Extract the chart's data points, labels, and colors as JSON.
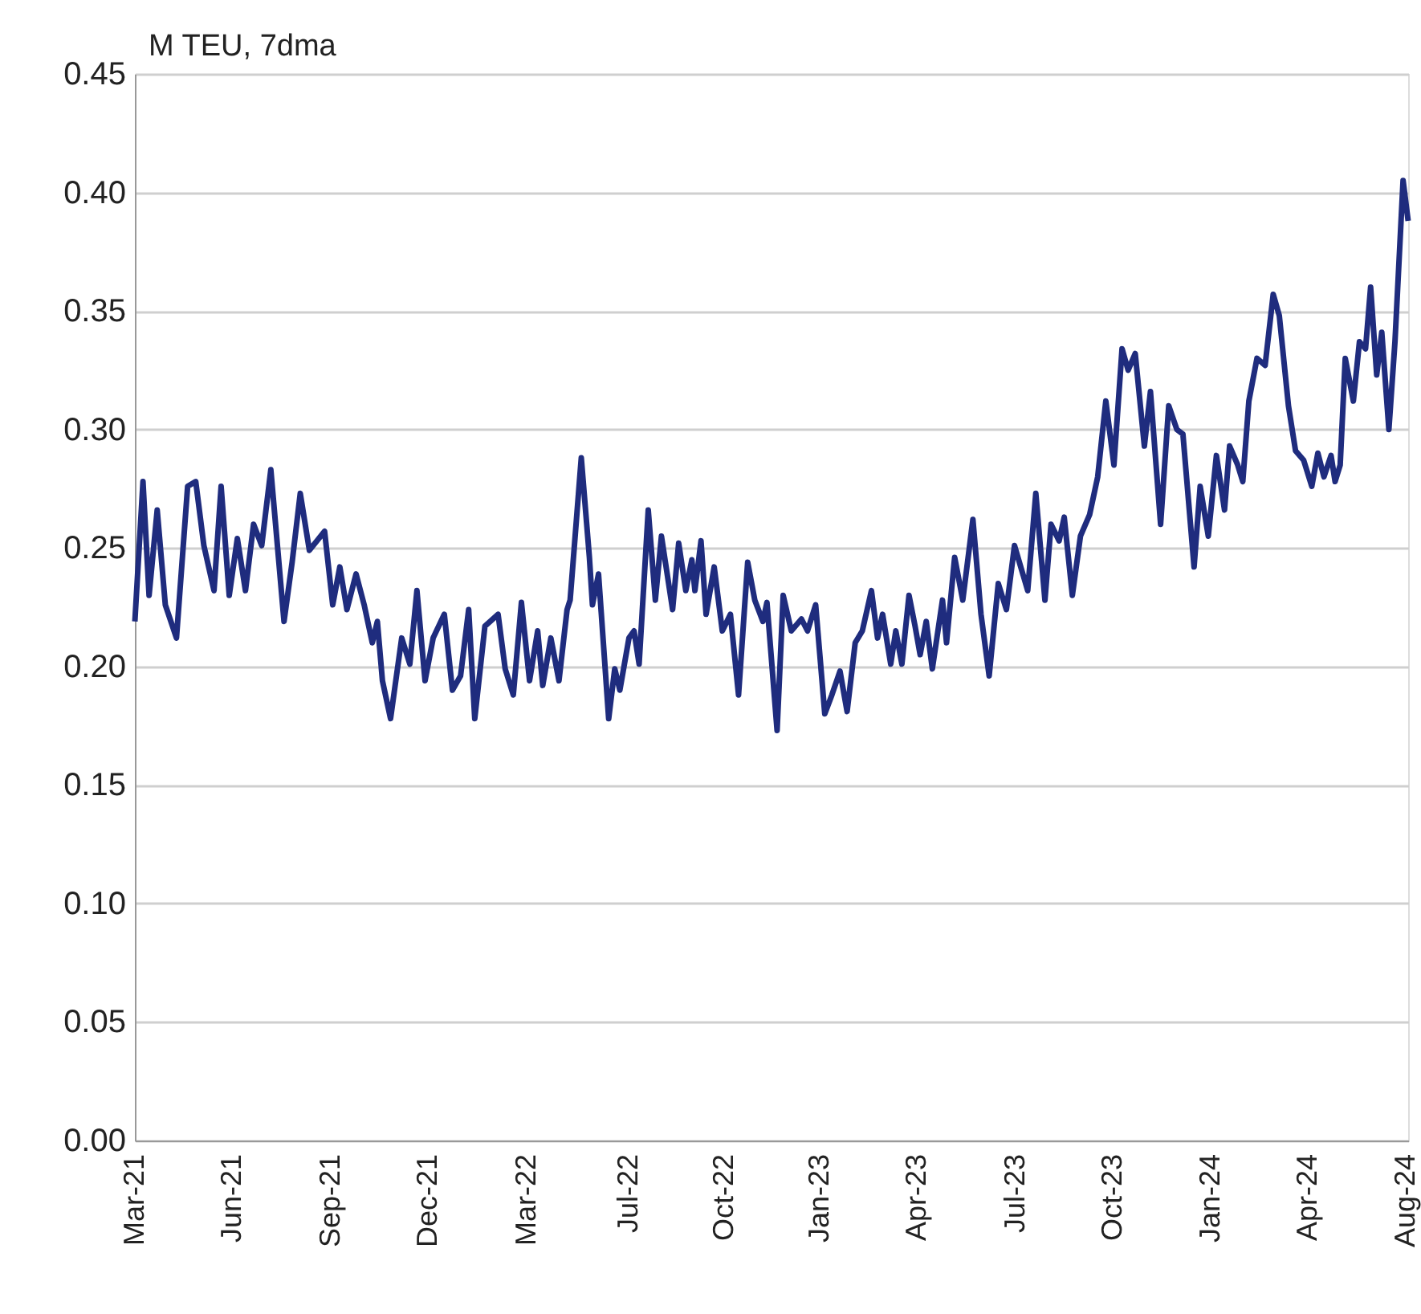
{
  "chart_data": {
    "type": "line",
    "ylabel": "M TEU, 7dma",
    "xlim": [
      "2021-03-01",
      "2024-08-07"
    ],
    "xticks": [
      {
        "value": "2021-03-01",
        "label": "Mar-21"
      },
      {
        "value": "2021-06-05",
        "label": "Jun-21"
      },
      {
        "value": "2021-09-10",
        "label": "Sep-21"
      },
      {
        "value": "2021-12-15",
        "label": "Dec-21"
      },
      {
        "value": "2022-03-22",
        "label": "Mar-22"
      },
      {
        "value": "2022-07-01",
        "label": "Jul-22"
      },
      {
        "value": "2022-10-03",
        "label": "Oct-22"
      },
      {
        "value": "2023-01-05",
        "label": "Jan-23"
      },
      {
        "value": "2023-04-11",
        "label": "Apr-23"
      },
      {
        "value": "2023-07-17",
        "label": "Jul-23"
      },
      {
        "value": "2023-10-21",
        "label": "Oct-23"
      },
      {
        "value": "2024-01-25",
        "label": "Jan-24"
      },
      {
        "value": "2024-04-30",
        "label": "Apr-24"
      },
      {
        "value": "2024-08-05",
        "label": "Aug-24"
      }
    ],
    "ylim": [
      0,
      0.45
    ],
    "yticks": [
      {
        "value": 0,
        "label": "0.00"
      },
      {
        "value": 0.05,
        "label": "0.05"
      },
      {
        "value": 0.1,
        "label": "0.10"
      },
      {
        "value": 0.15,
        "label": "0.15"
      },
      {
        "value": 0.2,
        "label": "0.20"
      },
      {
        "value": 0.25,
        "label": "0.25"
      },
      {
        "value": 0.3,
        "label": "0.30"
      },
      {
        "value": 0.35,
        "label": "0.35"
      },
      {
        "value": 0.4,
        "label": "0.40"
      },
      {
        "value": 0.45,
        "label": "0.45"
      }
    ],
    "grid": "y",
    "legend": false,
    "marker": "none",
    "line_style": "solid",
    "series": [
      {
        "color": "#1f2c7e",
        "x": [
          "2021-03-01",
          "2021-03-09",
          "2021-03-15",
          "2021-03-23",
          "2021-03-31",
          "2021-04-11",
          "2021-04-22",
          "2021-04-30",
          "2021-05-08",
          "2021-05-18",
          "2021-05-25",
          "2021-06-02",
          "2021-06-10",
          "2021-06-18",
          "2021-06-26",
          "2021-07-04",
          "2021-07-13",
          "2021-07-26",
          "2021-08-03",
          "2021-08-11",
          "2021-08-20",
          "2021-09-04",
          "2021-09-12",
          "2021-09-19",
          "2021-09-26",
          "2021-10-05",
          "2021-10-13",
          "2021-10-21",
          "2021-10-26",
          "2021-10-31",
          "2021-11-08",
          "2021-11-19",
          "2021-11-27",
          "2021-12-04",
          "2021-12-12",
          "2021-12-20",
          "2021-12-31",
          "2022-01-08",
          "2022-01-16",
          "2022-01-24",
          "2022-01-30",
          "2022-02-09",
          "2022-02-22",
          "2022-03-01",
          "2022-03-09",
          "2022-03-17",
          "2022-03-25",
          "2022-04-02",
          "2022-04-07",
          "2022-04-15",
          "2022-04-23",
          "2022-05-01",
          "2022-05-04",
          "2022-05-15",
          "2022-05-23",
          "2022-05-26",
          "2022-06-01",
          "2022-06-11",
          "2022-06-17",
          "2022-06-22",
          "2022-07-01",
          "2022-07-06",
          "2022-07-11",
          "2022-07-20",
          "2022-07-27",
          "2022-08-02",
          "2022-08-13",
          "2022-08-19",
          "2022-08-26",
          "2022-09-01",
          "2022-09-04",
          "2022-09-10",
          "2022-09-15",
          "2022-09-23",
          "2022-10-01",
          "2022-10-09",
          "2022-10-17",
          "2022-10-26",
          "2022-11-02",
          "2022-11-10",
          "2022-11-14",
          "2022-11-24",
          "2022-11-30",
          "2022-12-08",
          "2022-12-18",
          "2022-12-24",
          "2023-01-01",
          "2023-01-10",
          "2023-01-17",
          "2023-01-25",
          "2023-02-01",
          "2023-02-09",
          "2023-02-16",
          "2023-02-25",
          "2023-03-03",
          "2023-03-08",
          "2023-03-16",
          "2023-03-21",
          "2023-03-27",
          "2023-04-03",
          "2023-04-09",
          "2023-04-14",
          "2023-04-20",
          "2023-04-26",
          "2023-05-06",
          "2023-05-10",
          "2023-05-18",
          "2023-05-26",
          "2023-06-05",
          "2023-06-13",
          "2023-06-21",
          "2023-06-30",
          "2023-07-08",
          "2023-07-16",
          "2023-07-29",
          "2023-08-06",
          "2023-08-15",
          "2023-08-21",
          "2023-08-29",
          "2023-09-03",
          "2023-09-11",
          "2023-09-19",
          "2023-09-28",
          "2023-10-06",
          "2023-10-14",
          "2023-10-22",
          "2023-10-30",
          "2023-11-05",
          "2023-11-12",
          "2023-11-21",
          "2023-11-27",
          "2023-12-07",
          "2023-12-15",
          "2023-12-23",
          "2023-12-29",
          "2024-01-09",
          "2024-01-15",
          "2024-01-23",
          "2024-01-31",
          "2024-02-08",
          "2024-02-13",
          "2024-02-21",
          "2024-02-26",
          "2024-03-03",
          "2024-03-11",
          "2024-03-19",
          "2024-03-27",
          "2024-04-02",
          "2024-04-11",
          "2024-04-18",
          "2024-04-26",
          "2024-05-04",
          "2024-05-10",
          "2024-05-16",
          "2024-05-23",
          "2024-05-27",
          "2024-06-01",
          "2024-06-06",
          "2024-06-14",
          "2024-06-20",
          "2024-06-26",
          "2024-07-01",
          "2024-07-07",
          "2024-07-12",
          "2024-07-19",
          "2024-07-25",
          "2024-08-02",
          "2024-08-07"
        ],
        "values": [
          0.219,
          0.278,
          0.23,
          0.266,
          0.226,
          0.212,
          0.276,
          0.278,
          0.251,
          0.232,
          0.276,
          0.23,
          0.254,
          0.232,
          0.26,
          0.251,
          0.283,
          0.219,
          0.244,
          0.273,
          0.249,
          0.257,
          0.226,
          0.242,
          0.224,
          0.239,
          0.226,
          0.21,
          0.219,
          0.194,
          0.178,
          0.212,
          0.201,
          0.232,
          0.194,
          0.212,
          0.222,
          0.19,
          0.196,
          0.224,
          0.178,
          0.217,
          0.222,
          0.199,
          0.188,
          0.227,
          0.194,
          0.215,
          0.192,
          0.212,
          0.194,
          0.224,
          0.228,
          0.288,
          0.246,
          0.226,
          0.239,
          0.178,
          0.199,
          0.19,
          0.212,
          0.215,
          0.201,
          0.266,
          0.228,
          0.255,
          0.224,
          0.252,
          0.232,
          0.245,
          0.232,
          0.253,
          0.222,
          0.242,
          0.215,
          0.222,
          0.188,
          0.244,
          0.228,
          0.219,
          0.227,
          0.173,
          0.23,
          0.215,
          0.22,
          0.215,
          0.226,
          0.18,
          0.188,
          0.198,
          0.181,
          0.21,
          0.215,
          0.232,
          0.212,
          0.222,
          0.201,
          0.215,
          0.201,
          0.23,
          0.217,
          0.205,
          0.219,
          0.199,
          0.228,
          0.21,
          0.246,
          0.228,
          0.262,
          0.222,
          0.196,
          0.235,
          0.224,
          0.251,
          0.232,
          0.273,
          0.228,
          0.26,
          0.253,
          0.263,
          0.23,
          0.255,
          0.264,
          0.28,
          0.312,
          0.285,
          0.334,
          0.325,
          0.332,
          0.293,
          0.316,
          0.26,
          0.31,
          0.3,
          0.298,
          0.242,
          0.276,
          0.255,
          0.289,
          0.266,
          0.293,
          0.285,
          0.278,
          0.312,
          0.33,
          0.327,
          0.357,
          0.348,
          0.31,
          0.291,
          0.287,
          0.276,
          0.29,
          0.28,
          0.289,
          0.278,
          0.285,
          0.33,
          0.312,
          0.337,
          0.334,
          0.36,
          0.323,
          0.341,
          0.3,
          0.337,
          0.405,
          0.388
        ]
      }
    ]
  }
}
